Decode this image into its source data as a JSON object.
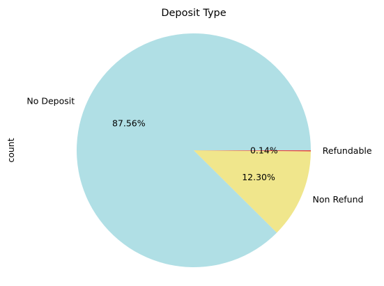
{
  "chart_data": {
    "type": "pie",
    "title": "Deposit Type",
    "ylabel": "count",
    "slices": [
      {
        "label": "No Deposit",
        "value": 87.56,
        "pct_label": "87.56%",
        "color": "#b0dfe5"
      },
      {
        "label": "Non Refund",
        "value": 12.3,
        "pct_label": "12.30%",
        "color": "#f0e68c"
      },
      {
        "label": "Refundable",
        "value": 0.14,
        "pct_label": "0.14%",
        "color": "#e8413c"
      }
    ],
    "start_angle_deg": 0,
    "direction": "counterclockwise"
  }
}
